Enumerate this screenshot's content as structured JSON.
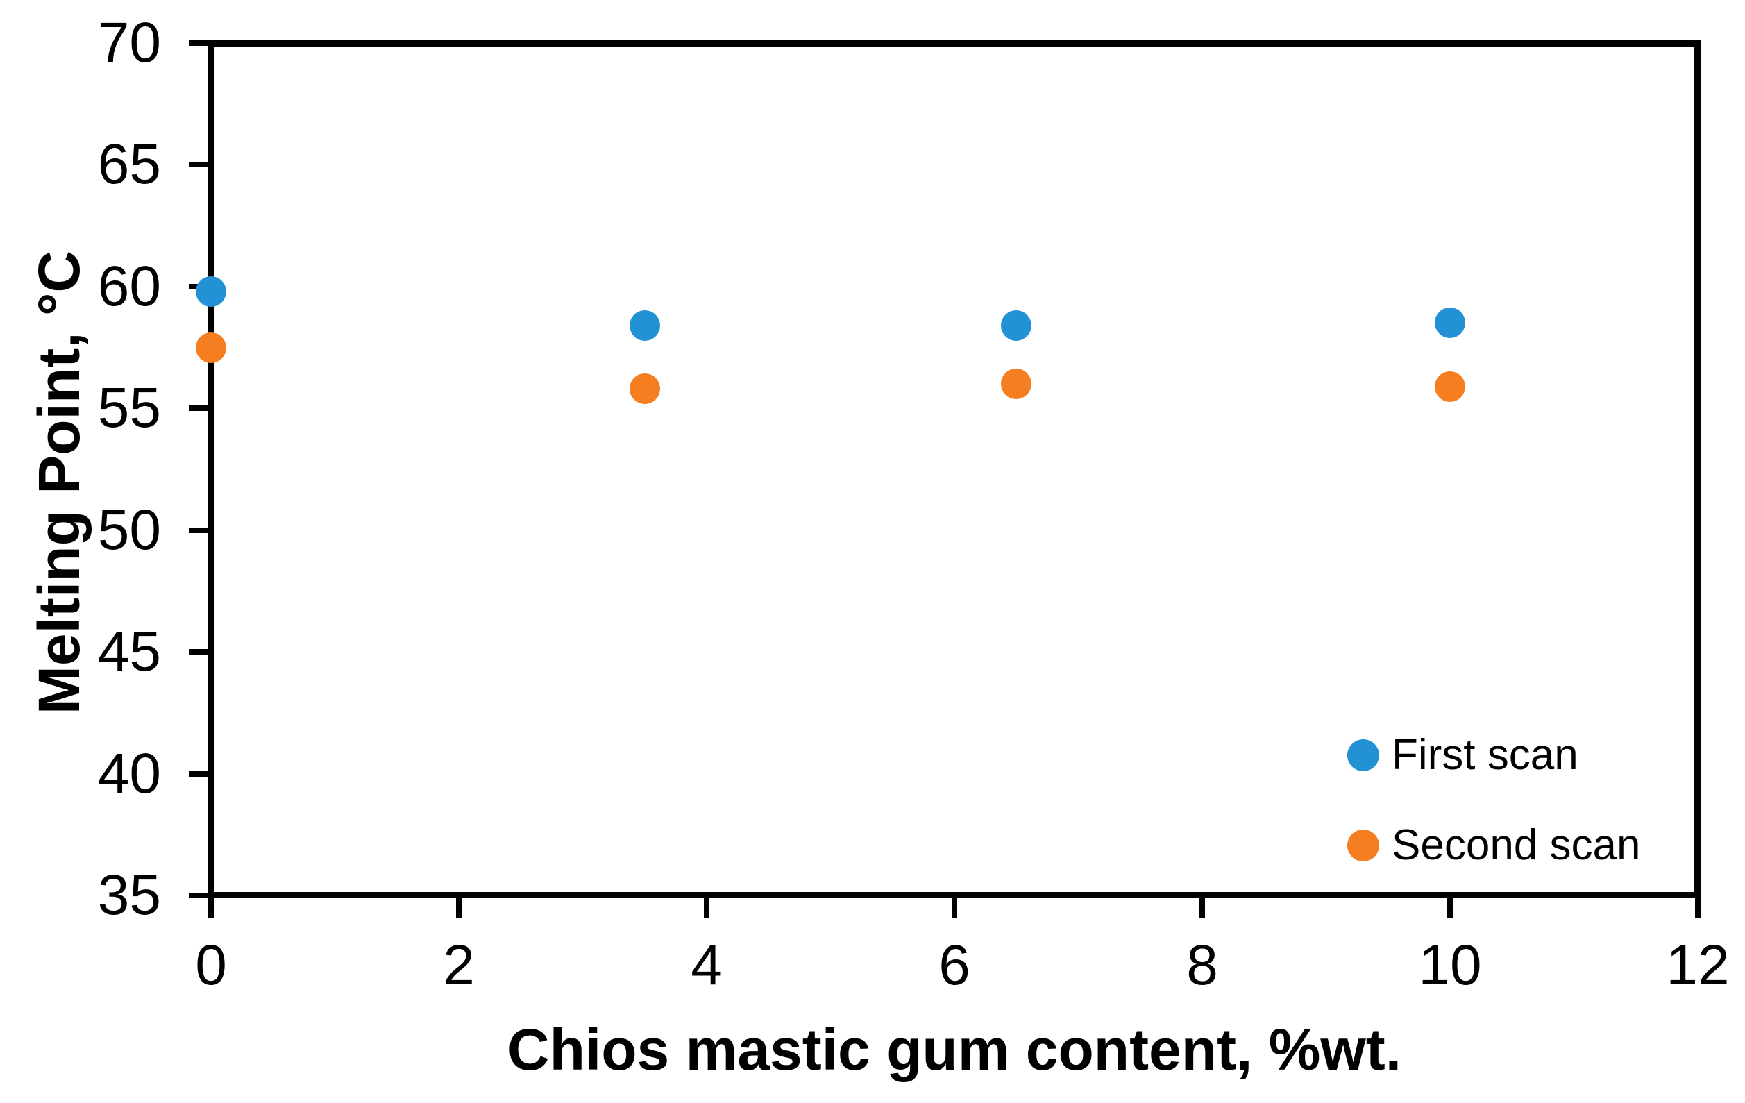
{
  "chart_data": {
    "type": "scatter",
    "title": "",
    "xlabel": "Chios mastic gum content, %wt.",
    "ylabel": "Melting Point, °C",
    "xlim": [
      0,
      12
    ],
    "ylim": [
      35,
      70
    ],
    "x_ticks": [
      0,
      2,
      4,
      6,
      8,
      10,
      12
    ],
    "y_ticks": [
      35,
      40,
      45,
      50,
      55,
      60,
      65,
      70
    ],
    "grid": false,
    "legend": {
      "position": "inside-lower-right",
      "entries": [
        "First scan",
        "Second scan"
      ]
    },
    "series": [
      {
        "name": "First scan",
        "color": "#2392D5",
        "x": [
          0,
          3.5,
          6.5,
          10
        ],
        "y": [
          59.8,
          58.4,
          58.4,
          58.5
        ]
      },
      {
        "name": "Second scan",
        "color": "#F57E20",
        "x": [
          0,
          3.5,
          6.5,
          10
        ],
        "y": [
          57.5,
          55.8,
          56.0,
          55.9
        ]
      }
    ]
  },
  "colors": {
    "axis": "#000000",
    "text": "#000000",
    "background": "#FFFFFF"
  }
}
